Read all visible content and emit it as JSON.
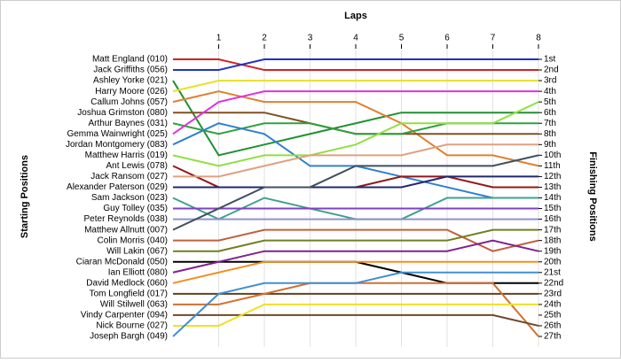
{
  "chart_data": {
    "type": "line",
    "title": "Laps",
    "y_label": "Starting Positions",
    "y2_label": "Finishing Positions",
    "x": [
      0,
      1,
      2,
      3,
      4,
      5,
      6,
      7,
      8
    ],
    "xlim": [
      0,
      8
    ],
    "xticks": [
      1,
      2,
      3,
      4,
      5,
      6,
      7,
      8
    ],
    "ylim": [
      27,
      1
    ],
    "y2lim": [
      27,
      1
    ],
    "y2ticks": [
      {
        "value": 1,
        "label": "1st"
      },
      {
        "value": 2,
        "label": "2nd"
      },
      {
        "value": 3,
        "label": "3rd"
      },
      {
        "value": 4,
        "label": "4th"
      },
      {
        "value": 5,
        "label": "5th"
      },
      {
        "value": 6,
        "label": "6th"
      },
      {
        "value": 7,
        "label": "7th"
      },
      {
        "value": 8,
        "label": "8th"
      },
      {
        "value": 9,
        "label": "9th"
      },
      {
        "value": 10,
        "label": "10th"
      },
      {
        "value": 11,
        "label": "11th"
      },
      {
        "value": 12,
        "label": "12th"
      },
      {
        "value": 13,
        "label": "13th"
      },
      {
        "value": 14,
        "label": "14th"
      },
      {
        "value": 15,
        "label": "15th"
      },
      {
        "value": 16,
        "label": "16th"
      },
      {
        "value": 17,
        "label": "17th"
      },
      {
        "value": 18,
        "label": "18th"
      },
      {
        "value": 19,
        "label": "19th"
      },
      {
        "value": 20,
        "label": "20th"
      },
      {
        "value": 21,
        "label": "21st"
      },
      {
        "value": 22,
        "label": "22nd"
      },
      {
        "value": 23,
        "label": "23rd"
      },
      {
        "value": 24,
        "label": "24th"
      },
      {
        "value": 25,
        "label": "25th"
      },
      {
        "value": 26,
        "label": "26th"
      },
      {
        "value": 27,
        "label": "27th"
      }
    ],
    "grid": true,
    "series": [
      {
        "name": "Matt England (010)",
        "color": "#d42020",
        "values": [
          1,
          1,
          2,
          2,
          2,
          2,
          2,
          2,
          2
        ]
      },
      {
        "name": "Jack Griffiths (056)",
        "color": "#2030c8",
        "values": [
          2,
          2,
          1,
          1,
          1,
          1,
          1,
          1,
          1
        ]
      },
      {
        "name": "Ashley Yorke (021)",
        "color": "#209030",
        "values": [
          3,
          10,
          9,
          8,
          7,
          6,
          6,
          6,
          6
        ]
      },
      {
        "name": "Harry Moore (026)",
        "color": "#e8e020",
        "values": [
          4,
          3,
          3,
          3,
          3,
          3,
          3,
          3,
          3
        ]
      },
      {
        "name": "Callum Johns (057)",
        "color": "#e08030",
        "values": [
          5,
          4,
          5,
          5,
          5,
          7,
          10,
          10,
          11
        ]
      },
      {
        "name": "Joshua Grimston (080)",
        "color": "#805020",
        "values": [
          6,
          6,
          6,
          7,
          8,
          8,
          8,
          8,
          8
        ]
      },
      {
        "name": "Arthur Baynes (031)",
        "color": "#30a040",
        "values": [
          7,
          8,
          7,
          7,
          8,
          8,
          7,
          7,
          7
        ]
      },
      {
        "name": "Gemma Wainwright (025)",
        "color": "#e030e0",
        "values": [
          8,
          5,
          4,
          4,
          4,
          4,
          4,
          4,
          4
        ]
      },
      {
        "name": "Jordan Montgomery (083)",
        "color": "#3080d0",
        "values": [
          9,
          7,
          8,
          11,
          11,
          12,
          13,
          14,
          14
        ]
      },
      {
        "name": "Matthew Harris (019)",
        "color": "#90e040",
        "values": [
          10,
          11,
          10,
          10,
          9,
          7,
          7,
          7,
          5
        ]
      },
      {
        "name": "Ant Lewis (078)",
        "color": "#901818",
        "values": [
          11,
          13,
          13,
          13,
          13,
          12,
          12,
          13,
          13
        ]
      },
      {
        "name": "Jack Ransom (027)",
        "color": "#e0a080",
        "values": [
          12,
          12,
          11,
          10,
          10,
          10,
          9,
          9,
          9
        ]
      },
      {
        "name": "Alexander Paterson (029)",
        "color": "#202870",
        "values": [
          13,
          13,
          13,
          13,
          13,
          13,
          12,
          12,
          12
        ]
      },
      {
        "name": "Sam Jackson (023)",
        "color": "#40a090",
        "values": [
          14,
          16,
          14,
          15,
          16,
          16,
          14,
          14,
          14
        ]
      },
      {
        "name": "Guy Tolley (035)",
        "color": "#8040c0",
        "values": [
          15,
          15,
          15,
          15,
          15,
          15,
          15,
          15,
          15
        ]
      },
      {
        "name": "Peter Reynolds (038)",
        "color": "#9090d0",
        "values": [
          16,
          16,
          16,
          16,
          16,
          16,
          16,
          16,
          16
        ]
      },
      {
        "name": "Matthew Allnutt (007)",
        "color": "#405060",
        "values": [
          17,
          15,
          13,
          13,
          11,
          11,
          11,
          11,
          10
        ]
      },
      {
        "name": "Colin Morris (040)",
        "color": "#c06040",
        "values": [
          18,
          18,
          17,
          17,
          17,
          17,
          17,
          19,
          18
        ]
      },
      {
        "name": "Will Lakin (067)",
        "color": "#708020",
        "values": [
          19,
          19,
          18,
          18,
          18,
          18,
          18,
          17,
          17
        ]
      },
      {
        "name": "Ciaran McDonald (050)",
        "color": "#000000",
        "values": [
          20,
          20,
          20,
          20,
          20,
          21,
          22,
          22,
          22
        ]
      },
      {
        "name": "Ian Elliott (080)",
        "color": "#802090",
        "values": [
          21,
          20,
          19,
          19,
          19,
          19,
          19,
          18,
          19
        ]
      },
      {
        "name": "David Medlock (060)",
        "color": "#f09020",
        "values": [
          22,
          21,
          20,
          20,
          20,
          20,
          20,
          20,
          20
        ]
      },
      {
        "name": "Tom Longfield (017)",
        "color": "#604020",
        "values": [
          23,
          23,
          23,
          23,
          23,
          23,
          23,
          23,
          23
        ]
      },
      {
        "name": "Will Stilwell (063)",
        "color": "#d07030",
        "values": [
          24,
          24,
          23,
          22,
          22,
          22,
          22,
          22,
          27
        ]
      },
      {
        "name": "Vindy Carpenter (094)",
        "color": "#704828",
        "values": [
          25,
          25,
          25,
          25,
          25,
          25,
          25,
          25,
          26
        ]
      },
      {
        "name": "Nick Bourne (027)",
        "color": "#f0e020",
        "values": [
          26,
          26,
          24,
          24,
          24,
          24,
          24,
          24,
          24
        ]
      },
      {
        "name": "Joseph Bargh (049)",
        "color": "#4090d0",
        "values": [
          27,
          23,
          22,
          22,
          22,
          21,
          21,
          21,
          21
        ]
      }
    ]
  }
}
